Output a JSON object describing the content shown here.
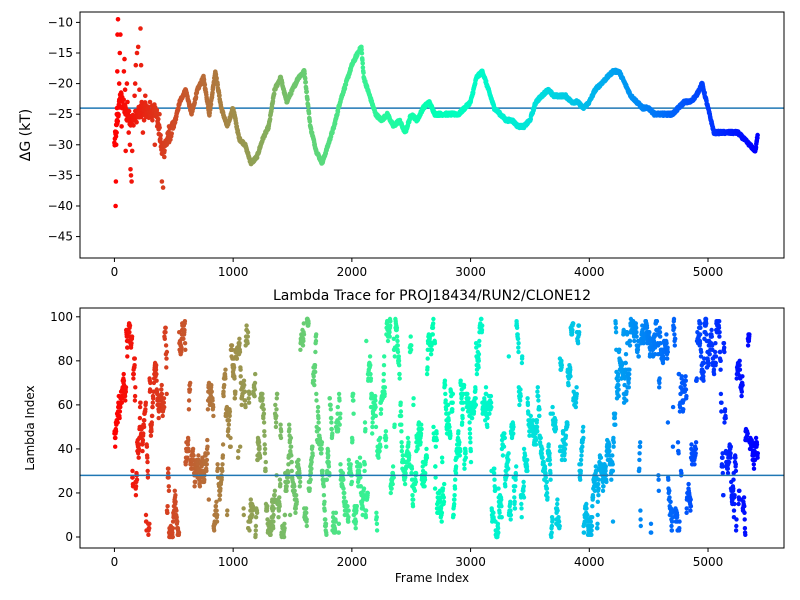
{
  "chart_data": [
    {
      "type": "scatter",
      "title": "",
      "xlabel": "",
      "ylabel": "ΔG (kT)",
      "xlim": [
        -290,
        5640
      ],
      "ylim": [
        -48.5,
        -8.3
      ],
      "xticks": [
        0,
        1000,
        2000,
        3000,
        4000,
        5000
      ],
      "xticklabels": [
        "0",
        "1000",
        "2000",
        "3000",
        "4000",
        "5000"
      ],
      "yticks": [
        -45,
        -40,
        -35,
        -30,
        -25,
        -20,
        -15,
        -10
      ],
      "yticklabels": [
        "−45",
        "−40",
        "−35",
        "−30",
        "−25",
        "−20",
        "−15",
        "−10"
      ],
      "colormap": "rainbow (red at frame 0 to violet at frame ~5400)",
      "hline": {
        "y": -24.0,
        "color": "#1f77b4"
      },
      "trace": [
        [
          0,
          -30
        ],
        [
          50,
          -22
        ],
        [
          100,
          -25
        ],
        [
          150,
          -26
        ],
        [
          200,
          -25
        ],
        [
          250,
          -24
        ],
        [
          300,
          -25
        ],
        [
          350,
          -24
        ],
        [
          400,
          -31
        ],
        [
          450,
          -29
        ],
        [
          500,
          -27
        ],
        [
          550,
          -23
        ],
        [
          600,
          -21
        ],
        [
          650,
          -25
        ],
        [
          700,
          -21
        ],
        [
          750,
          -19
        ],
        [
          800,
          -25
        ],
        [
          850,
          -18
        ],
        [
          900,
          -24
        ],
        [
          950,
          -27
        ],
        [
          1000,
          -24
        ],
        [
          1050,
          -29
        ],
        [
          1100,
          -30
        ],
        [
          1150,
          -33
        ],
        [
          1200,
          -32
        ],
        [
          1250,
          -29
        ],
        [
          1300,
          -27
        ],
        [
          1350,
          -21
        ],
        [
          1400,
          -19
        ],
        [
          1450,
          -23
        ],
        [
          1500,
          -21
        ],
        [
          1550,
          -19
        ],
        [
          1600,
          -18
        ],
        [
          1650,
          -27
        ],
        [
          1700,
          -31
        ],
        [
          1750,
          -33
        ],
        [
          1800,
          -30
        ],
        [
          1850,
          -27
        ],
        [
          1900,
          -23
        ],
        [
          1950,
          -20
        ],
        [
          2000,
          -17
        ],
        [
          2050,
          -15
        ],
        [
          2080,
          -14
        ],
        [
          2100,
          -19
        ],
        [
          2150,
          -22
        ],
        [
          2200,
          -25
        ],
        [
          2250,
          -26
        ],
        [
          2300,
          -25
        ],
        [
          2350,
          -27
        ],
        [
          2400,
          -26
        ],
        [
          2450,
          -28
        ],
        [
          2500,
          -25
        ],
        [
          2550,
          -26
        ],
        [
          2600,
          -24
        ],
        [
          2650,
          -23
        ],
        [
          2700,
          -25
        ],
        [
          2800,
          -25
        ],
        [
          2900,
          -25
        ],
        [
          2950,
          -24
        ],
        [
          3000,
          -23
        ],
        [
          3050,
          -19
        ],
        [
          3100,
          -18
        ],
        [
          3150,
          -21
        ],
        [
          3200,
          -24
        ],
        [
          3250,
          -25
        ],
        [
          3300,
          -26
        ],
        [
          3350,
          -26
        ],
        [
          3400,
          -27
        ],
        [
          3450,
          -27
        ],
        [
          3500,
          -26
        ],
        [
          3550,
          -23
        ],
        [
          3600,
          -22
        ],
        [
          3650,
          -21
        ],
        [
          3700,
          -22
        ],
        [
          3750,
          -22
        ],
        [
          3800,
          -22
        ],
        [
          3850,
          -23
        ],
        [
          3900,
          -23
        ],
        [
          3950,
          -24
        ],
        [
          4000,
          -23
        ],
        [
          4050,
          -21
        ],
        [
          4100,
          -20
        ],
        [
          4150,
          -19
        ],
        [
          4200,
          -18
        ],
        [
          4250,
          -18
        ],
        [
          4300,
          -20
        ],
        [
          4350,
          -22
        ],
        [
          4400,
          -23
        ],
        [
          4450,
          -24
        ],
        [
          4500,
          -24
        ],
        [
          4550,
          -25
        ],
        [
          4600,
          -25
        ],
        [
          4650,
          -25
        ],
        [
          4700,
          -25
        ],
        [
          4750,
          -24
        ],
        [
          4800,
          -23
        ],
        [
          4850,
          -23
        ],
        [
          4900,
          -22
        ],
        [
          4950,
          -20
        ],
        [
          5000,
          -24
        ],
        [
          5050,
          -28
        ],
        [
          5100,
          -28
        ],
        [
          5150,
          -28
        ],
        [
          5200,
          -28
        ],
        [
          5250,
          -28
        ],
        [
          5300,
          -29
        ],
        [
          5350,
          -30
        ],
        [
          5400,
          -31
        ],
        [
          5420,
          -28
        ]
      ],
      "early_scatter": [
        [
          10,
          -40
        ],
        [
          12,
          -36
        ],
        [
          15,
          -30
        ],
        [
          18,
          -28
        ],
        [
          20,
          -25
        ],
        [
          22,
          -24
        ],
        [
          24,
          -18
        ],
        [
          26,
          -12
        ],
        [
          30,
          -9.5
        ],
        [
          40,
          -20
        ],
        [
          45,
          -15
        ],
        [
          50,
          -12
        ],
        [
          55,
          -22
        ],
        [
          60,
          -27
        ],
        [
          65,
          -24
        ],
        [
          80,
          -18
        ],
        [
          85,
          -16
        ],
        [
          90,
          -21
        ],
        [
          95,
          -31
        ],
        [
          100,
          -25
        ],
        [
          105,
          -20
        ],
        [
          110,
          -23
        ],
        [
          120,
          -28
        ],
        [
          125,
          -26
        ],
        [
          130,
          -30
        ],
        [
          135,
          -34
        ],
        [
          140,
          -35
        ],
        [
          145,
          -36
        ],
        [
          150,
          -31
        ],
        [
          160,
          -26
        ],
        [
          170,
          -22
        ],
        [
          175,
          -20
        ],
        [
          180,
          -17
        ],
        [
          190,
          -15
        ],
        [
          200,
          -14
        ],
        [
          210,
          -21
        ],
        [
          215,
          -25
        ],
        [
          220,
          -11
        ],
        [
          225,
          -17
        ],
        [
          230,
          -23
        ],
        [
          240,
          -28
        ],
        [
          250,
          -26
        ],
        [
          260,
          -22
        ],
        [
          280,
          -24
        ],
        [
          300,
          -23
        ],
        [
          320,
          -26
        ],
        [
          340,
          -30
        ],
        [
          360,
          -27
        ],
        [
          380,
          -25
        ],
        [
          400,
          -36
        ],
        [
          410,
          -37
        ],
        [
          420,
          -32
        ],
        [
          440,
          -30
        ],
        [
          460,
          -27
        ]
      ]
    },
    {
      "type": "scatter",
      "title": "Lambda Trace for PROJ18434/RUN2/CLONE12",
      "xlabel": "Frame Index",
      "ylabel": "Lambda Index",
      "xlim": [
        -290,
        5640
      ],
      "ylim": [
        -5,
        104
      ],
      "xticks": [
        0,
        1000,
        2000,
        3000,
        4000,
        5000
      ],
      "xticklabels": [
        "0",
        "1000",
        "2000",
        "3000",
        "4000",
        "5000"
      ],
      "yticks": [
        0,
        20,
        40,
        60,
        80,
        100
      ],
      "yticklabels": [
        "0",
        "20",
        "40",
        "60",
        "80",
        "100"
      ],
      "colormap": "rainbow (red at frame 0 to violet at frame ~5400)",
      "hline": {
        "y": 28,
        "color": "#1f77b4"
      },
      "n_points": 5400,
      "regimes": [
        [
          0,
          200,
          0,
          98
        ],
        [
          200,
          1200,
          0,
          99
        ],
        [
          1200,
          1500,
          0,
          65
        ],
        [
          1500,
          1700,
          0,
          99
        ],
        [
          1700,
          2100,
          0,
          65
        ],
        [
          2100,
          2300,
          0,
          99
        ],
        [
          2300,
          2700,
          0,
          99
        ],
        [
          2700,
          3000,
          0,
          72
        ],
        [
          3000,
          3500,
          0,
          99
        ],
        [
          3500,
          3700,
          0,
          82
        ],
        [
          3700,
          4000,
          0,
          99
        ],
        [
          4000,
          4200,
          0,
          55
        ],
        [
          4200,
          4400,
          40,
          99
        ],
        [
          4400,
          4600,
          0,
          99
        ],
        [
          4600,
          4900,
          0,
          99
        ],
        [
          4900,
          5100,
          70,
          99
        ],
        [
          5100,
          5350,
          0,
          99
        ],
        [
          5350,
          5420,
          0,
          45
        ]
      ]
    }
  ]
}
